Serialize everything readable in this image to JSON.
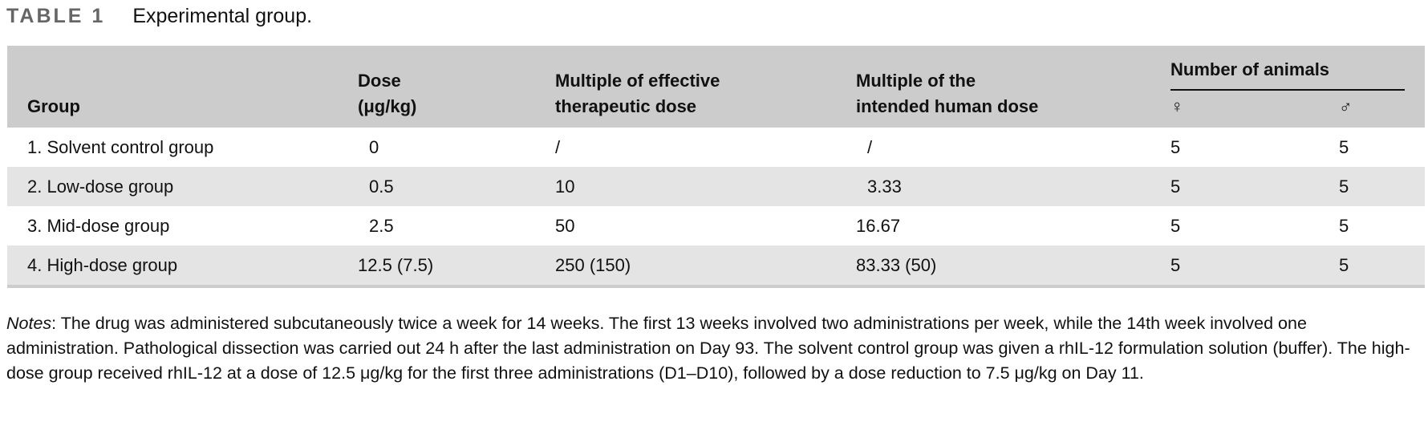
{
  "caption": {
    "label": "TABLE 1",
    "title": "Experimental group."
  },
  "headers": {
    "group": "Group",
    "dose_line1": "Dose",
    "dose_line2": "(μg/kg)",
    "eff_line1": "Multiple of effective",
    "eff_line2": "therapeutic dose",
    "human_line1": "Multiple of the",
    "human_line2": "intended human dose",
    "animals": "Number of animals",
    "female": "♀",
    "male": "♂"
  },
  "rows": [
    {
      "group": "1. Solvent control group",
      "dose": "0",
      "eff": "/",
      "human": "/",
      "female": "5",
      "male": "5"
    },
    {
      "group": "2. Low-dose group",
      "dose": "0.5",
      "eff": "10",
      "human": "3.33",
      "female": "5",
      "male": "5"
    },
    {
      "group": "3. Mid-dose group",
      "dose": "2.5",
      "eff": "50",
      "human": "16.67",
      "female": "5",
      "male": "5"
    },
    {
      "group": "4. High-dose group",
      "dose": "12.5 (7.5)",
      "eff": "250 (150)",
      "human": "83.33 (50)",
      "female": "5",
      "male": "5"
    }
  ],
  "notes": {
    "label": "Notes",
    "text": ": The drug was administered subcutaneously twice a week for 14 weeks. The first 13 weeks involved two administrations per week, while the 14th week involved one administration. Pathological dissection was carried out 24 h after the last administration on Day 93. The solvent control group was given a rhIL-12 formulation solution (buffer). The high-dose group received rhIL-12 at a dose of 12.5 μg/kg for the first three administrations (D1–D10), followed by a dose reduction to 7.5 μg/kg on Day 11."
  }
}
